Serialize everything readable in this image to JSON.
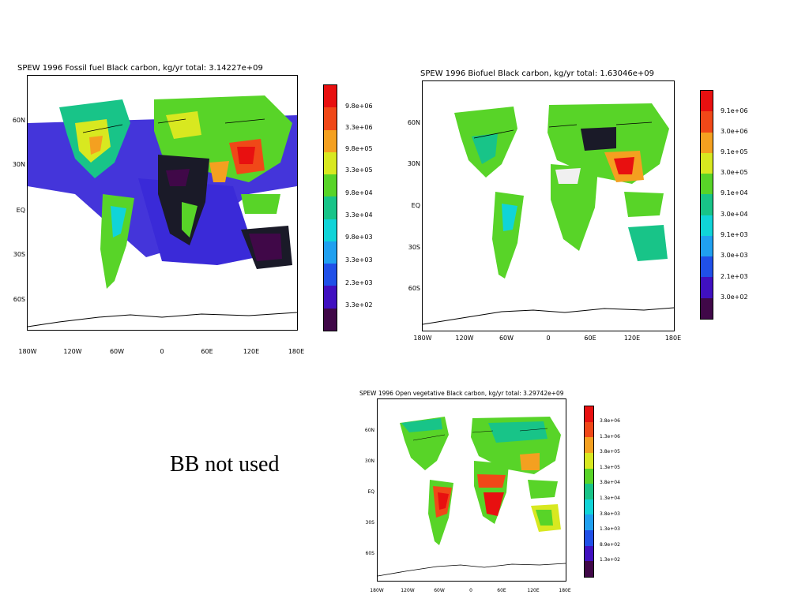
{
  "panels": [
    {
      "id": "fossil",
      "title": "SPEW 1996 Fossil fuel Black carbon, kg/yr total: 3.14227e+09",
      "lat_labels": [
        "60N",
        "30N",
        "EQ",
        "30S",
        "60S"
      ],
      "lon_labels": [
        "180W",
        "120W",
        "60W",
        "0",
        "60E",
        "120E",
        "180E"
      ],
      "colorbar_labels": [
        "9.8e+06",
        "3.3e+06",
        "9.8e+05",
        "3.3e+05",
        "9.8e+04",
        "3.3e+04",
        "9.8e+03",
        "3.3e+03",
        "2.3e+03",
        "3.3e+02"
      ]
    },
    {
      "id": "biofuel",
      "title": "SPEW 1996 Biofuel Black carbon, kg/yr total: 1.63046e+09",
      "lat_labels": [
        "60N",
        "30N",
        "EQ",
        "30S",
        "60S"
      ],
      "lon_labels": [
        "180W",
        "120W",
        "60W",
        "0",
        "60E",
        "120E",
        "180E"
      ],
      "colorbar_labels": [
        "9.1e+06",
        "3.0e+06",
        "9.1e+05",
        "3.0e+05",
        "9.1e+04",
        "3.0e+04",
        "9.1e+03",
        "3.0e+03",
        "2.1e+03",
        "3.0e+02"
      ]
    },
    {
      "id": "openveg",
      "title": "SPEW 1996 Open vegetative Black carbon, kg/yr total: 3.29742e+09",
      "lat_labels": [
        "60N",
        "30N",
        "EQ",
        "30S",
        "60S"
      ],
      "lon_labels": [
        "180W",
        "120W",
        "60W",
        "0",
        "60E",
        "120E",
        "180E"
      ],
      "colorbar_labels": [
        "3.8e+06",
        "1.3e+06",
        "3.8e+05",
        "1.3e+05",
        "3.8e+04",
        "1.3e+04",
        "3.8e+03",
        "1.3e+03",
        "8.9e+02",
        "1.3e+02"
      ]
    }
  ],
  "colorbar_colors": [
    "#e81010",
    "#f04818",
    "#f4a020",
    "#d8e820",
    "#58d428",
    "#18c488",
    "#10d4d8",
    "#20a0f0",
    "#2050e8",
    "#4010c0",
    "#400848"
  ],
  "note": "BB not used"
}
